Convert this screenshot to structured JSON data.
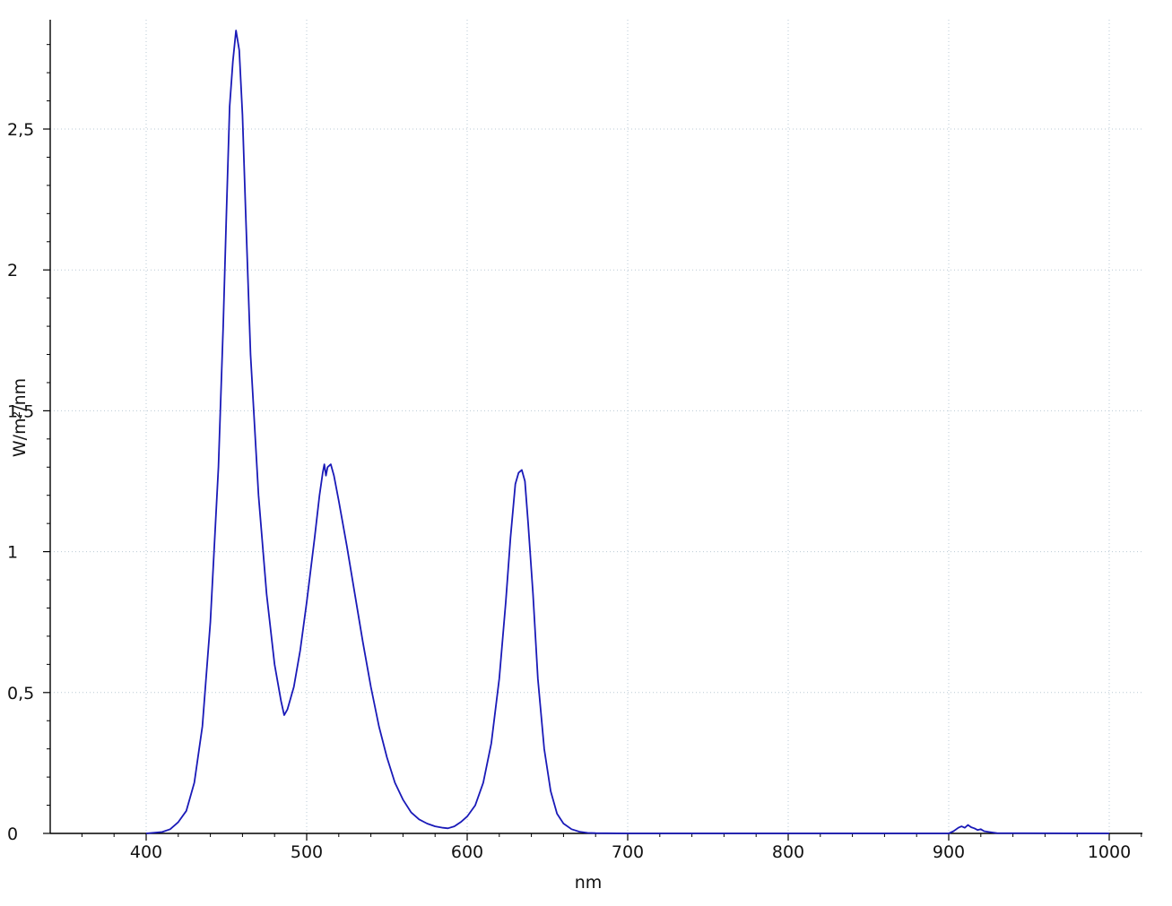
{
  "chart_data": {
    "type": "line",
    "xlabel": "nm",
    "ylabel": "W/m²/nm",
    "xlim": [
      350,
      1020
    ],
    "ylim": [
      0,
      2.85
    ],
    "x_ticks": [
      400,
      500,
      600,
      700,
      800,
      900,
      1000
    ],
    "x_tick_labels": [
      "400",
      "500",
      "600",
      "700",
      "800",
      "900",
      "1000"
    ],
    "y_ticks": [
      0,
      0.5,
      1,
      1.5,
      2,
      2.5
    ],
    "y_tick_labels": [
      "0",
      "0,5",
      "1",
      "1,5",
      "2",
      "2,5"
    ],
    "grid": true,
    "legend": "none",
    "series": [
      {
        "color": "#1a1ab8",
        "points": [
          [
            400,
            0
          ],
          [
            410,
            0.005
          ],
          [
            415,
            0.015
          ],
          [
            420,
            0.04
          ],
          [
            425,
            0.08
          ],
          [
            430,
            0.18
          ],
          [
            435,
            0.38
          ],
          [
            440,
            0.75
          ],
          [
            445,
            1.3
          ],
          [
            448,
            1.8
          ],
          [
            450,
            2.2
          ],
          [
            452,
            2.58
          ],
          [
            454,
            2.74
          ],
          [
            456,
            2.85
          ],
          [
            458,
            2.78
          ],
          [
            460,
            2.55
          ],
          [
            462,
            2.2
          ],
          [
            465,
            1.7
          ],
          [
            470,
            1.2
          ],
          [
            475,
            0.85
          ],
          [
            480,
            0.6
          ],
          [
            484,
            0.47
          ],
          [
            486,
            0.42
          ],
          [
            488,
            0.44
          ],
          [
            492,
            0.52
          ],
          [
            496,
            0.65
          ],
          [
            500,
            0.82
          ],
          [
            505,
            1.05
          ],
          [
            508,
            1.2
          ],
          [
            510,
            1.28
          ],
          [
            511,
            1.31
          ],
          [
            512,
            1.27
          ],
          [
            513,
            1.3
          ],
          [
            515,
            1.31
          ],
          [
            517,
            1.27
          ],
          [
            520,
            1.18
          ],
          [
            525,
            1.02
          ],
          [
            530,
            0.85
          ],
          [
            535,
            0.68
          ],
          [
            540,
            0.52
          ],
          [
            545,
            0.38
          ],
          [
            550,
            0.27
          ],
          [
            555,
            0.18
          ],
          [
            560,
            0.12
          ],
          [
            565,
            0.075
          ],
          [
            570,
            0.05
          ],
          [
            575,
            0.035
          ],
          [
            580,
            0.025
          ],
          [
            585,
            0.02
          ],
          [
            588,
            0.018
          ],
          [
            592,
            0.025
          ],
          [
            596,
            0.04
          ],
          [
            600,
            0.06
          ],
          [
            605,
            0.1
          ],
          [
            610,
            0.18
          ],
          [
            615,
            0.32
          ],
          [
            620,
            0.55
          ],
          [
            624,
            0.82
          ],
          [
            627,
            1.05
          ],
          [
            630,
            1.24
          ],
          [
            632,
            1.28
          ],
          [
            634,
            1.29
          ],
          [
            636,
            1.25
          ],
          [
            638,
            1.1
          ],
          [
            641,
            0.85
          ],
          [
            644,
            0.55
          ],
          [
            648,
            0.3
          ],
          [
            652,
            0.15
          ],
          [
            656,
            0.07
          ],
          [
            660,
            0.035
          ],
          [
            665,
            0.015
          ],
          [
            670,
            0.006
          ],
          [
            675,
            0.002
          ],
          [
            680,
            0.001
          ],
          [
            700,
            0
          ],
          [
            800,
            0
          ],
          [
            900,
            0
          ],
          [
            903,
            0.008
          ],
          [
            906,
            0.02
          ],
          [
            908,
            0.025
          ],
          [
            910,
            0.02
          ],
          [
            912,
            0.03
          ],
          [
            914,
            0.022
          ],
          [
            916,
            0.018
          ],
          [
            918,
            0.012
          ],
          [
            920,
            0.015
          ],
          [
            922,
            0.008
          ],
          [
            925,
            0.005
          ],
          [
            930,
            0.001
          ],
          [
            1000,
            0
          ]
        ]
      }
    ]
  }
}
